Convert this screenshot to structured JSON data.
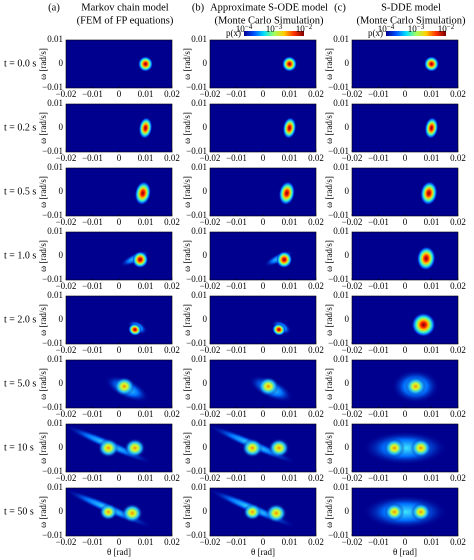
{
  "columns": [
    {
      "tag": "(a)",
      "title": [
        "Markov chain model",
        "(FEM of FP equations)"
      ]
    },
    {
      "tag": "(b)",
      "title": [
        "Approximate S-ODE model",
        "(Monte Carlo Simulation)"
      ]
    },
    {
      "tag": "(c)",
      "title": [
        "S-DDE model",
        "(Monte Carlo Simulation)"
      ]
    }
  ],
  "colorbar": {
    "label": "p(x)",
    "ticks": [
      {
        "base": "10",
        "exp": "−4"
      },
      {
        "base": "10",
        "exp": "−3"
      },
      {
        "base": "10",
        "exp": "−2"
      }
    ]
  },
  "rows": [
    "t = 0.0 s",
    "t = 0.2 s",
    "t = 0.5 s",
    "t = 1.0 s",
    "t = 2.0 s",
    "t = 5.0 s",
    "t = 10 s",
    "t = 50 s"
  ],
  "axes": {
    "xlabel": "θ [rad]",
    "ylabel": "ω [rad/s]",
    "xticks": [
      "−0.02",
      "−0.01",
      "0",
      "0.01",
      "0.02"
    ],
    "yticks": [
      "0.01",
      "0",
      "−0.01"
    ]
  }
}
